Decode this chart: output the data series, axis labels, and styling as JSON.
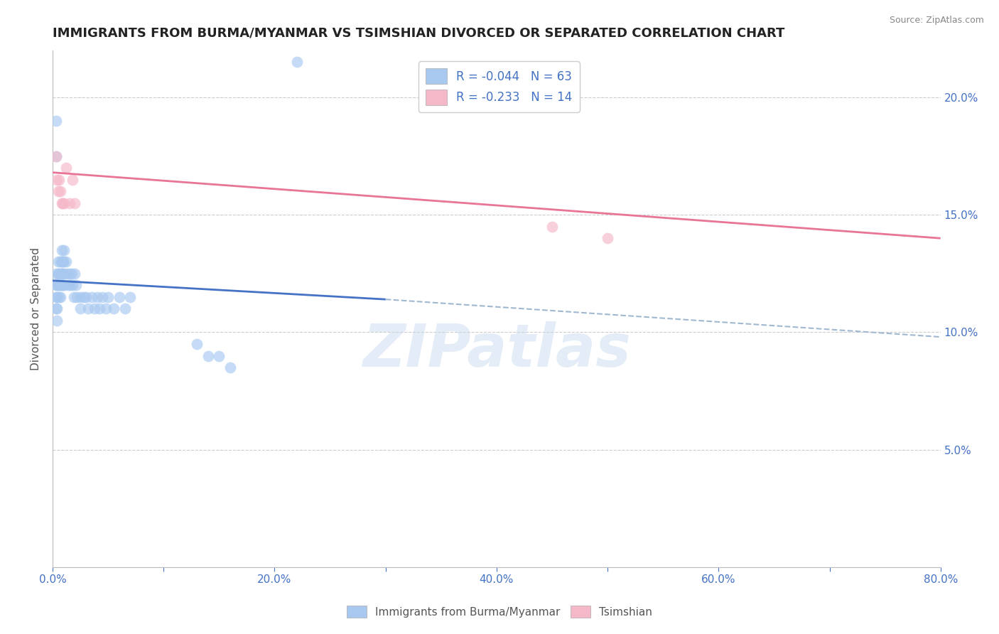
{
  "title": "IMMIGRANTS FROM BURMA/MYANMAR VS TSIMSHIAN DIVORCED OR SEPARATED CORRELATION CHART",
  "source": "Source: ZipAtlas.com",
  "xlabel_legend1": "Immigrants from Burma/Myanmar",
  "xlabel_legend2": "Tsimshian",
  "ylabel": "Divorced or Separated",
  "legend_r1": "R = -0.044",
  "legend_n1": "N = 63",
  "legend_r2": "R = -0.233",
  "legend_n2": "N = 14",
  "xlim": [
    0.0,
    0.8
  ],
  "ylim": [
    0.0,
    0.22
  ],
  "yticks": [
    0.05,
    0.1,
    0.15,
    0.2
  ],
  "ytick_labels": [
    "5.0%",
    "10.0%",
    "15.0%",
    "20.0%"
  ],
  "xticks": [
    0.0,
    0.1,
    0.2,
    0.3,
    0.4,
    0.5,
    0.6,
    0.7,
    0.8
  ],
  "xtick_labels": [
    "0.0%",
    "",
    "20.0%",
    "",
    "40.0%",
    "",
    "60.0%",
    "",
    "80.0%"
  ],
  "blue_color": "#a8c8f0",
  "pink_color": "#f5b8c8",
  "blue_line_color": "#4472c4",
  "pink_line_color": "#e87595",
  "dashed_line_color": "#a0b8d0",
  "watermark": "ZIPatlas",
  "title_color": "#222222",
  "axis_color": "#4472c4",
  "blue_scatter_x": [
    0.003,
    0.003,
    0.003,
    0.003,
    0.004,
    0.004,
    0.004,
    0.004,
    0.005,
    0.005,
    0.005,
    0.006,
    0.006,
    0.006,
    0.007,
    0.007,
    0.007,
    0.007,
    0.008,
    0.008,
    0.008,
    0.008,
    0.009,
    0.009,
    0.009,
    0.01,
    0.01,
    0.01,
    0.01,
    0.012,
    0.013,
    0.014,
    0.015,
    0.016,
    0.017,
    0.018,
    0.019,
    0.02,
    0.021,
    0.022,
    0.025,
    0.025,
    0.028,
    0.03,
    0.032,
    0.035,
    0.038,
    0.04,
    0.042,
    0.045,
    0.048,
    0.05,
    0.055,
    0.06,
    0.065,
    0.07,
    0.13,
    0.14,
    0.15,
    0.16,
    0.003,
    0.003,
    0.22
  ],
  "blue_scatter_y": [
    0.125,
    0.12,
    0.115,
    0.11,
    0.12,
    0.115,
    0.11,
    0.105,
    0.13,
    0.125,
    0.12,
    0.125,
    0.12,
    0.115,
    0.13,
    0.125,
    0.12,
    0.115,
    0.135,
    0.13,
    0.125,
    0.12,
    0.13,
    0.125,
    0.12,
    0.135,
    0.13,
    0.125,
    0.12,
    0.13,
    0.125,
    0.12,
    0.125,
    0.12,
    0.125,
    0.12,
    0.115,
    0.125,
    0.12,
    0.115,
    0.115,
    0.11,
    0.115,
    0.115,
    0.11,
    0.115,
    0.11,
    0.115,
    0.11,
    0.115,
    0.11,
    0.115,
    0.11,
    0.115,
    0.11,
    0.115,
    0.095,
    0.09,
    0.09,
    0.085,
    0.175,
    0.19,
    0.215
  ],
  "pink_scatter_x": [
    0.003,
    0.004,
    0.005,
    0.006,
    0.007,
    0.008,
    0.009,
    0.01,
    0.012,
    0.015,
    0.018,
    0.02,
    0.45,
    0.5
  ],
  "pink_scatter_y": [
    0.175,
    0.165,
    0.16,
    0.165,
    0.16,
    0.155,
    0.155,
    0.155,
    0.17,
    0.155,
    0.165,
    0.155,
    0.145,
    0.14
  ],
  "blue_trend_x": [
    0.0,
    0.3
  ],
  "blue_trend_y": [
    0.122,
    0.114
  ],
  "pink_trend_x": [
    0.0,
    0.8
  ],
  "pink_trend_y": [
    0.168,
    0.14
  ],
  "dashed_trend_x": [
    0.3,
    0.8
  ],
  "dashed_trend_y": [
    0.114,
    0.098
  ]
}
